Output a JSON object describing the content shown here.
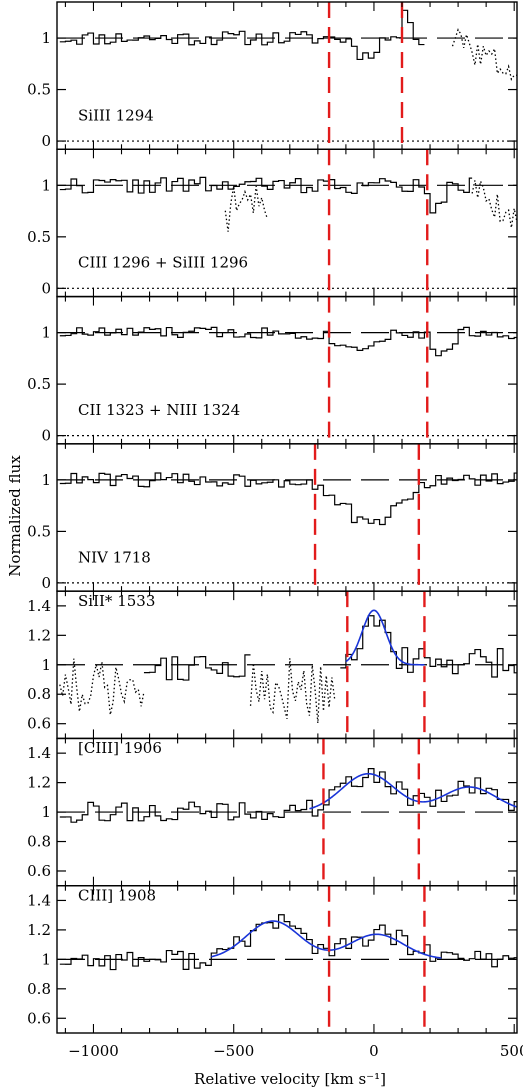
{
  "chart_data": {
    "type": "line",
    "xlabel": "Relative velocity [km s⁻¹]",
    "ylabel": "Normalized flux",
    "xlim": [
      -1130,
      510
    ],
    "x_ticks": [
      -1000,
      -500,
      0,
      500
    ],
    "x_tick_labels": [
      "−1000",
      "−500",
      "0",
      "500"
    ],
    "grid": false,
    "colors": {
      "spectrum": "#000000",
      "fit": "#1a35d8",
      "bounds": "#e21b1b",
      "reference": "#000000"
    },
    "panels": [
      {
        "label": "SiIII  1294",
        "ylim": [
          -0.08,
          1.35
        ],
        "y_ticks": [
          0,
          0.5,
          1
        ],
        "y_tick_labels": [
          "0",
          "0.5",
          "1"
        ],
        "continuum": 1.0,
        "zero_level": 0.0,
        "bounds": [
          -160,
          100
        ],
        "spectrum": {
          "x_start": -1120,
          "x_step": 20,
          "x_end": 180,
          "seed": 11,
          "noise": 0.07
        },
        "features": [
          {
            "kind": "absorption",
            "center": -40,
            "width": 30,
            "depth": 0.18
          },
          {
            "kind": "emission",
            "center": 110,
            "width": 15,
            "height": 0.25
          }
        ],
        "contaminated": [
          {
            "from": 280,
            "to": 510,
            "seed": 3,
            "trend": -0.35
          }
        ],
        "fit": null
      },
      {
        "label": "CIII  1296  +  SiIII  1296",
        "ylim": [
          -0.08,
          1.35
        ],
        "y_ticks": [
          0,
          0.5,
          1
        ],
        "y_tick_labels": [
          "0",
          "0.5",
          "1"
        ],
        "continuum": 1.0,
        "zero_level": 0.0,
        "bounds": [
          -160,
          190
        ],
        "spectrum": {
          "x_start": -1120,
          "x_step": 20,
          "x_end": 350,
          "seed": 22,
          "noise": 0.08
        },
        "features": [
          {
            "kind": "absorption",
            "center": 210,
            "width": 25,
            "depth": 0.25
          }
        ],
        "contaminated": [
          {
            "from": -530,
            "to": -380,
            "seed": 9,
            "trend": -0.25
          },
          {
            "from": 350,
            "to": 510,
            "seed": 5,
            "trend": -0.35
          }
        ],
        "fit": null
      },
      {
        "label": "CII  1323  +  NIII  1324",
        "ylim": [
          -0.08,
          1.35
        ],
        "y_ticks": [
          0,
          0.5,
          1
        ],
        "y_tick_labels": [
          "0",
          "0.5",
          "1"
        ],
        "continuum": 1.0,
        "zero_level": 0.0,
        "bounds": [
          -160,
          190
        ],
        "spectrum": {
          "x_start": -1120,
          "x_step": 20,
          "x_end": 510,
          "seed": 33,
          "noise": 0.06
        },
        "features": [
          {
            "kind": "absorption",
            "center": -80,
            "width": 60,
            "depth": 0.15
          },
          {
            "kind": "absorption",
            "center": 230,
            "width": 30,
            "depth": 0.22
          }
        ],
        "contaminated": [],
        "fit": null
      },
      {
        "label": "NIV  1718",
        "ylim": [
          -0.08,
          1.35
        ],
        "y_ticks": [
          0,
          0.5,
          1
        ],
        "y_tick_labels": [
          "0",
          "0.5",
          "1"
        ],
        "continuum": 1.0,
        "zero_level": 0.0,
        "bounds": [
          -210,
          160
        ],
        "spectrum": {
          "x_start": -1120,
          "x_step": 20,
          "x_end": 510,
          "seed": 44,
          "noise": 0.07
        },
        "features": [
          {
            "kind": "absorption",
            "center": -20,
            "width": 90,
            "depth": 0.45
          }
        ],
        "contaminated": [],
        "fit": null
      },
      {
        "label": "SiII*  1533",
        "ylim": [
          0.5,
          1.5
        ],
        "y_ticks": [
          0.6,
          0.8,
          1,
          1.2,
          1.4
        ],
        "y_tick_labels": [
          "0.6",
          "0.8",
          "1",
          "1.2",
          "1.4"
        ],
        "continuum": 1.0,
        "zero_level": null,
        "bounds": [
          -95,
          180
        ],
        "spectrum": {
          "x_start": -820,
          "x_step": 20,
          "x_end": 510,
          "seed": 55,
          "noise": 0.11
        },
        "features": [],
        "contaminated": [
          {
            "from": -1120,
            "to": -820,
            "seed": 12,
            "trend": -0.15
          }
        ],
        "dotted_windows": [
          {
            "from": -440,
            "to": -130,
            "seed": 17
          }
        ],
        "fit": {
          "x_range": [
            -100,
            180
          ],
          "baseline": 1.0,
          "components": [
            {
              "center": 0,
              "sigma": 42,
              "amp": 0.37
            }
          ]
        }
      },
      {
        "label": "[CIII]  1906",
        "ylim": [
          0.5,
          1.5
        ],
        "y_ticks": [
          0.6,
          0.8,
          1,
          1.2,
          1.4
        ],
        "y_tick_labels": [
          "0.6",
          "0.8",
          "1",
          "1.2",
          "1.4"
        ],
        "continuum": 1.0,
        "zero_level": null,
        "bounds": [
          -180,
          160
        ],
        "spectrum": {
          "x_start": -1120,
          "x_step": 20,
          "x_end": 510,
          "seed": 66,
          "noise": 0.07
        },
        "features": [],
        "contaminated": [],
        "fit": {
          "x_range": [
            -230,
            510
          ],
          "baseline": 1.0,
          "components": [
            {
              "center": -20,
              "sigma": 95,
              "amp": 0.26
            },
            {
              "center": 340,
              "sigma": 95,
              "amp": 0.17
            }
          ]
        }
      },
      {
        "label": "CIII]  1908",
        "ylim": [
          0.5,
          1.5
        ],
        "y_ticks": [
          0.6,
          0.8,
          1,
          1.2,
          1.4
        ],
        "y_tick_labels": [
          "0.6",
          "0.8",
          "1",
          "1.2",
          "1.4"
        ],
        "continuum": 1.0,
        "zero_level": null,
        "bounds": [
          -160,
          180
        ],
        "spectrum": {
          "x_start": -1120,
          "x_step": 20,
          "x_end": 510,
          "seed": 77,
          "noise": 0.07
        },
        "features": [],
        "contaminated": [],
        "fit": {
          "x_range": [
            -580,
            240
          ],
          "baseline": 1.0,
          "components": [
            {
              "center": -360,
              "sigma": 95,
              "amp": 0.26
            },
            {
              "center": 10,
              "sigma": 95,
              "amp": 0.17
            }
          ]
        }
      }
    ]
  }
}
